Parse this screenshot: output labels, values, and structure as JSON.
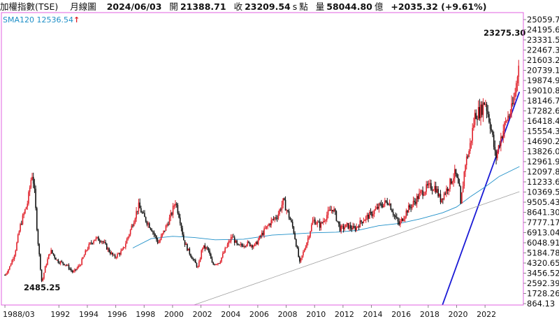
{
  "header": {
    "name": "加權指數(TSE)",
    "period": "月線圖",
    "date": "2024/06/03",
    "open_label": "開",
    "open": "21388.71",
    "close_label": "收",
    "close": "23209.54",
    "close_suffix": "s",
    "points_label": "點",
    "volume_label": "量",
    "volume": "58044.80",
    "volume_unit": "億",
    "change": "+2035.32 (+9.61%)"
  },
  "indicator": {
    "label": "SMA120",
    "value": "12536.54",
    "arrow": "↑"
  },
  "colors": {
    "up": "#e0202a",
    "down": "#111111",
    "sma": "#1e8fc8",
    "trend_steep": "#1a1ad6",
    "trend_long": "#a0a0a0",
    "frame": "#e060e0",
    "grid": "#dddddd"
  },
  "chart_data": {
    "type": "candlestick",
    "x_ticks": [
      "1988/03",
      "1992",
      "1994",
      "1996",
      "1998",
      "2000",
      "2002",
      "2004",
      "2006",
      "2008",
      "2010",
      "2012",
      "2014",
      "2016",
      "2018",
      "2020",
      "2022"
    ],
    "y_ticks": [
      "25059.7",
      "24195.6",
      "23331.5",
      "22467.3",
      "21603.2",
      "20739.1",
      "19874.9",
      "19010.8",
      "18146.7",
      "17282.6",
      "16418.4",
      "15554.3",
      "14690.2",
      "13826.0",
      "12961.9",
      "12097.8",
      "11233.6",
      "10369.5",
      "9505.43",
      "8641.30",
      "7777.17",
      "6913.04",
      "6048.91",
      "5184.78",
      "4320.65",
      "3456.52",
      "2592.39",
      "1728.26",
      "864.13"
    ],
    "ylim": [
      864.13,
      25059.7
    ],
    "annotations": [
      {
        "text": "23275.30",
        "x": 2024.42,
        "y": 23275.3
      },
      {
        "text": "2485.25",
        "x": 1990.8,
        "y": 2485.25
      }
    ],
    "anchors": [
      [
        1988.2,
        3300
      ],
      [
        1988.5,
        3900
      ],
      [
        1988.9,
        5200
      ],
      [
        1989.3,
        7600
      ],
      [
        1989.8,
        9500
      ],
      [
        1990.1,
        12000
      ],
      [
        1990.25,
        10900
      ],
      [
        1990.5,
        6500
      ],
      [
        1990.8,
        2600
      ],
      [
        1991.0,
        3800
      ],
      [
        1991.4,
        5400
      ],
      [
        1991.9,
        4500
      ],
      [
        1992.5,
        4200
      ],
      [
        1993.0,
        3500
      ],
      [
        1993.5,
        4200
      ],
      [
        1994.0,
        5600
      ],
      [
        1994.5,
        6400
      ],
      [
        1995.0,
        6300
      ],
      [
        1995.5,
        5400
      ],
      [
        1995.9,
        4800
      ],
      [
        1996.5,
        5400
      ],
      [
        1997.0,
        7000
      ],
      [
        1997.6,
        9200
      ],
      [
        1998.0,
        8200
      ],
      [
        1998.5,
        7300
      ],
      [
        1999.0,
        6000
      ],
      [
        1999.5,
        7300
      ],
      [
        1999.9,
        8400
      ],
      [
        2000.2,
        9600
      ],
      [
        2000.5,
        8200
      ],
      [
        2000.8,
        6200
      ],
      [
        2001.1,
        5400
      ],
      [
        2001.5,
        4500
      ],
      [
        2001.8,
        3900
      ],
      [
        2002.1,
        5700
      ],
      [
        2002.5,
        5500
      ],
      [
        2002.8,
        4200
      ],
      [
        2003.3,
        4400
      ],
      [
        2003.8,
        5700
      ],
      [
        2004.2,
        6600
      ],
      [
        2004.6,
        5700
      ],
      [
        2005.2,
        6000
      ],
      [
        2005.8,
        5800
      ],
      [
        2006.3,
        6800
      ],
      [
        2006.9,
        7800
      ],
      [
        2007.4,
        8400
      ],
      [
        2007.8,
        9600
      ],
      [
        2008.2,
        8300
      ],
      [
        2008.5,
        7200
      ],
      [
        2008.8,
        5300
      ],
      [
        2008.95,
        4300
      ],
      [
        2009.5,
        6300
      ],
      [
        2009.9,
        8000
      ],
      [
        2010.4,
        7500
      ],
      [
        2010.9,
        8500
      ],
      [
        2011.3,
        9000
      ],
      [
        2011.8,
        7200
      ],
      [
        2012.3,
        7500
      ],
      [
        2012.8,
        7200
      ],
      [
        2013.4,
        8000
      ],
      [
        2014.0,
        8500
      ],
      [
        2014.6,
        9200
      ],
      [
        2015.2,
        9600
      ],
      [
        2015.6,
        8400
      ],
      [
        2015.95,
        7600
      ],
      [
        2016.5,
        8800
      ],
      [
        2017.0,
        9500
      ],
      [
        2017.5,
        10300
      ],
      [
        2018.0,
        10800
      ],
      [
        2018.5,
        10800
      ],
      [
        2018.85,
        9700
      ],
      [
        2019.3,
        10600
      ],
      [
        2019.9,
        12000
      ],
      [
        2020.2,
        10500
      ],
      [
        2020.25,
        8800
      ],
      [
        2020.6,
        12800
      ],
      [
        2020.9,
        14000
      ],
      [
        2021.3,
        17000
      ],
      [
        2021.7,
        17300
      ],
      [
        2022.0,
        18200
      ],
      [
        2022.4,
        16000
      ],
      [
        2022.75,
        13200
      ],
      [
        2023.1,
        15000
      ],
      [
        2023.6,
        16800
      ],
      [
        2023.9,
        17400
      ],
      [
        2024.1,
        18800
      ],
      [
        2024.25,
        20000
      ],
      [
        2024.42,
        22500
      ]
    ],
    "sma120": [
      [
        1997.2,
        5600
      ],
      [
        1998.5,
        6400
      ],
      [
        2000.0,
        6600
      ],
      [
        2001.5,
        6500
      ],
      [
        2003.0,
        6300
      ],
      [
        2005.0,
        6350
      ],
      [
        2007.0,
        6700
      ],
      [
        2008.5,
        6800
      ],
      [
        2010.0,
        6900
      ],
      [
        2011.5,
        6950
      ],
      [
        2013.0,
        7100
      ],
      [
        2014.5,
        7500
      ],
      [
        2016.0,
        7700
      ],
      [
        2017.5,
        8100
      ],
      [
        2019.0,
        8600
      ],
      [
        2020.0,
        9100
      ],
      [
        2021.0,
        10000
      ],
      [
        2022.0,
        10800
      ],
      [
        2023.0,
        11700
      ],
      [
        2024.42,
        12536.54
      ]
    ],
    "trend_lines": [
      {
        "name": "steep",
        "from": [
          2019.0,
          864.13
        ],
        "to": [
          2024.42,
          18900
        ]
      },
      {
        "name": "long",
        "from": [
          2001.5,
          864.13
        ],
        "to": [
          2024.42,
          10400
        ]
      }
    ]
  }
}
